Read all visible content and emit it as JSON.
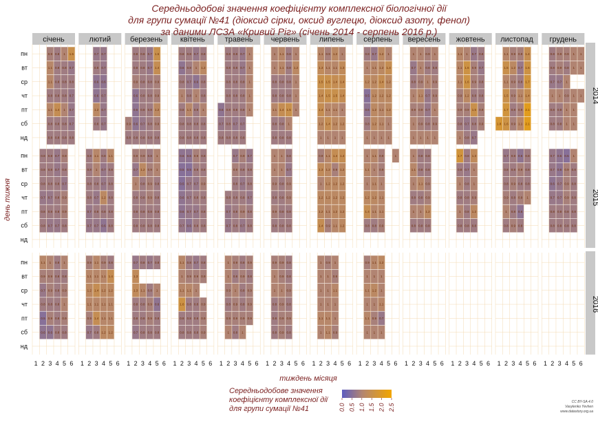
{
  "title": {
    "line1": "Середньодобові значення коефіцієнту комплексної біологічної дії",
    "line2": "для групи сумації №41 (діоксид сірки, оксид вуглецю, діоксид азоту, фенол)",
    "line3": "за даними ЛСЗА «Кривий Ріг» (січень 2014 - серпень 2016 р.)"
  },
  "chart_data": {
    "type": "heatmap",
    "months": [
      "січень",
      "лютий",
      "березень",
      "квітень",
      "травень",
      "червень",
      "липень",
      "серпень",
      "вересень",
      "жовтень",
      "листопад",
      "грудень"
    ],
    "years": [
      "2014",
      "2015",
      "2016"
    ],
    "days": [
      "пн",
      "вт",
      "ср",
      "чт",
      "пт",
      "сб",
      "нд"
    ],
    "week_ticks": [
      "1",
      "2",
      "3",
      "4",
      "5",
      "6"
    ],
    "xlabel": "тиждень місяця",
    "ylabel": "день тижня",
    "legend_title": [
      "Середньодобове значення",
      "коефіцієнту комплексної дії",
      "для групи сумації №41"
    ],
    "legend_ticks": [
      "0.0",
      "0.5",
      "1.0",
      "1.5",
      "2.0",
      "2.5"
    ],
    "legend_range": [
      0,
      2.5
    ],
    "colors": {
      "low": "#5d5cc0",
      "mid": "#b5866e",
      "high": "#f2a500",
      "missing": "#c0c0c0",
      "strip": "#c8c8c8"
    },
    "cells": [
      [
        [
          "e,e,0.9,0.8,1,1.5",
          "e,e,1.1,0.8,0.8,0.7",
          "e,e,1.1,0.8,0.8,0.8",
          "e,e,0.8,0.8,0.8,0.7",
          "e,e,1.1,1.4,1,0.7",
          "e,e,0.8,0.8,0.8,0.7",
          "e,e,0.8,0.8,0.8,0.8"
        ],
        [
          "e,e,0.7,0.7,e,e",
          "e,e,0.8,0.7,e,e",
          "e,e,0.6,0.6,e,e",
          "e,e,0.6,0.7,e,e",
          "e,e,1.2,0.7,e,e",
          "e,e,0.8,0.7,e,e",
          "e,e,e,e,e,e"
        ],
        [
          "e,0.8,0.8,0.7,1.5,e",
          "e,0.8,0.8,0.7,1.4,e",
          "e,0.9,0.8,0.8,0.9,e",
          "e,0.6,0.8,0.8,0.9,e",
          "e,0.6,0.8,0.8,1.2,e",
          "0.9,0.6,0.7,0.8,0.9,e",
          "0.8,0.8,0.8,0.8,0.8,e"
        ],
        [
          "e,0.8,0.8,0.7,0.8,e",
          "e,0.6,0.8,1,1.2,e",
          "e,0.8,0.7,0.6,0.8,e",
          "e,1,0.8,1,0.8,e",
          "e,0.8,1.1,0.8,1,e",
          "e,0.8,0.8,0.8,0.8,e",
          "e,0.8,0.8,0.8,0.8,e"
        ],
        [
          "e,0.8,0.8,0.7,1,e",
          "e,0.8,0.8,0.7,1,e",
          "e,0.8,0.8,0.8,1,e",
          "e,0.8,0.8,0.8,1,e",
          "0.6,0.8,0.8,0.8,1,e",
          "0.7,0.8,0.7,0.7,e,e",
          "0.8,0.8,0.8,0.8,e,e"
        ],
        [
          "e,1,1.1,0.8,1,e",
          "e,1,1.1,0.8,1.2,e",
          "e,0.8,0.8,0.8,1,e",
          "e,0.8,0.8,0.8,1,e",
          "e,1.1,1.4,1.5,1,e",
          "e,0.8,0.8,1,e,e",
          "e,0.8,0.8,0.8,e,e"
        ],
        [
          "e,1.1,0.9,1.2,1,e",
          "e,1.3,1.1,1.1,1.3,e",
          "e,1.5,1.5,1.4,1.4,e",
          "e,1.4,1.5,1.5,1.4,e",
          "e,1.4,1.1,1.1,1,e",
          "e,1.2,1.4,1.2,1.2,e",
          "e,1,1,1,1,e"
        ],
        [
          "e,0.8,0.7,1.2,1,e",
          "e,1,1.1,1.2,1.4,e",
          "e,1.2,1.2,1.4,1.2,e",
          "e,0.5,1.2,1.2,1.2,e",
          "e,0.6,1.2,1.1,1.2,e",
          "e,0.8,1.2,1.1,1,e",
          "e,1,1,1,1,e"
        ],
        [
          "e,1,1,0.9,1,e",
          "e,0.7,1,0.8,0.8,e",
          "e,0.8,0.9,1,0.9,e",
          "e,1,1.1,0.7,0.9,e",
          "e,0.9,0.9,0.7,1,e",
          "e,1,0.9,0.8,0.9,e",
          "e,1,1,1,1,e"
        ],
        [
          "e,1.1,1,0.7,0.8,e",
          "e,1.1,1.6,0.9,0.7,e",
          "e,1.1,1.6,0.9,0.8,e",
          "e,0.9,1.2,0.8,0.8,e",
          "e,0.9,0.9,1.5,0.9,e",
          "e,0.8,0.7,0.8,0.9,e",
          "e,1,0.8,0.7,e,e"
        ],
        [
          "e,1.1,0.9,0.9,1.4,e",
          "e,1.5,1.2,0.7,1.6,e",
          "e,1.1,0.9,0.8,1.7,e",
          "e,1.5,0.9,1.1,1.4,e",
          "e,1.7,0.8,0.9,2.1,e",
          "1.8,1.6,0.9,1.1,2.1,e",
          "e,e,e,e,e,e"
        ],
        [
          "e,0.8,0.9,0.9,1,1",
          "e,0.8,0.9,0.8,1,1",
          "e,0.7,0.7,1,e,e",
          "e,1,1,0.9,1,1",
          "e,0.8,0.8,1,1,e",
          "e,0.8,0.8,1,1,e",
          "e,e,e,e,e,e"
        ]
      ],
      [
        [
          "e,0.8,0.8,0.7,0.9,e",
          "e,0.8,0.8,0.7,0.8,e",
          "e,0.8,0.8,0.8,0.7,e",
          "e,0.7,0.7,0.8,0.9,e",
          "e,0.8,0.8,0.8,0.9,e",
          "e,0.8,0.7,0.7,0.8,e",
          "e,e,e,e,e,e"
        ],
        [
          "e,0.8,1.1,0.8,1.1,e",
          "e,0.8,1,0.7,0.8,e",
          "e,0.8,0.8,0.7,0.8,e",
          "e,0.8,0.7,1.2,0.8,e",
          "e,0.7,0.8,0.8,0.8,e",
          "e,0.7,0.7,0.6,0.8,e",
          "e,e,e,e,e,e"
        ],
        [
          "e,0.9,0.9,0.8,1,e",
          "e,0.7,1.2,0.9,1,e",
          "e,1,0.8,0.9,0.8,e",
          "e,0.8,0.8,0.9,0.8,e",
          "e,0.8,0.8,0.8,0.8,e",
          "e,0.8,0.8,0.8,0.8,e",
          "e,e,e,e,e,e"
        ],
        [
          "e,0.6,0.6,0.9,0.8,e",
          "e,0.5,0.5,0.8,0.8,e",
          "e,0.5,0.7,0.7,0.9,e",
          "e,0.6,0.7,0.8,0.8,e",
          "e,0.6,0.7,0.7,0.8,e",
          "e,0.7,0.6,0.8,0.8,e",
          "e,e,e,e,e,e"
        ],
        [
          "e,e,0.7,0.9,0.7,e",
          "e,e,0.9,0.8,0.8,e",
          "e,e,0.8,0.7,0.8,e",
          "e,0.8,0.8,0.8,0.7,e",
          "e,0.7,0.8,0.9,0.8,e",
          "e,0.7,0.8,0.7,0.8,e",
          "e,e,e,e,e,e"
        ],
        [
          "e,1,1,0.8,e,e",
          "e,1,1,0.7,e,e",
          "e,0.9,0.8,0.9,e,e",
          "e,0.8,0.8,0.9,e,e",
          "e,0.9,0.8,0.8,e,e",
          "e,0.8,0.8,0.8,e,e",
          "e,e,e,e,e,e"
        ],
        [
          "e,0.9,1.1,1.4,1.4,e",
          "e,1.3,1.2,0.9,1.2,e",
          "e,1,1.2,1.2,1.2,e",
          "e,1.2,1.2,1.2,1.2,e",
          "e,1.2,1.1,1.2,1.2,e",
          "e,1.4,0.9,1.1,1.2,e",
          "e,e,e,e,e,e"
        ],
        [
          "e,1,1.1,0.9,e,1",
          "e,1.1,1,0.9,e,e",
          "e,1,1.1,1,e,e",
          "e,1.2,1.2,1.1,e,e",
          "e,1.4,1.1,1.1,e,e",
          "e,0.8,0.8,0.9,e,e",
          "e,e,e,e,e,e"
        ],
        [
          "e,1,0.8,0.8,e,e",
          "e,1.1,0.8,0.8,e,e",
          "e,1,1.1,0.9,e,e",
          "e,0.8,0.8,0.9,e,e",
          "e,1,1,1.2,e,e",
          "e,0.8,0.8,0.8,e,e",
          "e,e,e,e,e,e"
        ],
        [
          "e,1.7,0.8,1.3,e,e",
          "e,0.8,0.7,1,e,e",
          "e,1,0.8,1,e,e",
          "e,0.8,0.8,0.9,e,e",
          "e,1,0.8,1.2,e,e",
          "e,0.8,0.8,0.8,e,e",
          "e,e,e,e,e,e"
        ],
        [
          "e,0.7,0.8,0.6,0.8,e",
          "e,0.8,0.8,0.9,0.8,e",
          "e,0.8,0.9,0.8,0.8,e",
          "e,0.9,0.8,0.9,1,e",
          "e,1,0.8,0.6,e,e",
          "e,0.8,0.9,0.8,e,e",
          "e,e,e,e,e,e"
        ],
        [
          "e,0.7,0.6,0.5,1,e",
          "e,0.7,0.6,0.9,0.8,e",
          "e,0.6,0.7,0.9,0.8,e",
          "e,0.7,0.7,0.9,0.8,e",
          "e,0.8,0.8,0.8,0.8,e",
          "e,0.8,0.8,0.8,0.8,e",
          "e,e,e,e,e,e"
        ]
      ],
      [
        [
          "e,1.1,1,0.8,1,e",
          "e,0.9,0.9,0.8,0.8,e",
          "e,0.7,0.9,0.8,0.9,e",
          "e,0.8,0.8,0.8,1,e",
          "e,0.5,0.9,0.8,0.9,e",
          "e,0.6,0.6,0.8,0.8,e",
          "e,e,e,e,e,e"
        ],
        [
          "e,0.9,1.1,0.9,0.8,e",
          "e,1.1,1.1,1.1,1.4,e",
          "e,1.2,1.4,1.2,1.2,e",
          "e,1.1,1.1,1.1,1.1,e",
          "e,0.9,1.4,1.1,1.1,e",
          "e,0.7,0.8,1.2,1.2,e",
          "e,e,e,e,e,e"
        ],
        [
          "e,0.7,0.8,0.7,0.8,e",
          "e,1.3,e,e,e,e",
          "e,1.3,1.1,0.8,1,e",
          "e,0.8,0.8,0.9,0.6,e",
          "e,0.8,0.8,0.9,0.8,e",
          "e,0.7,0.8,0.8,0.8,e",
          "e,e,e,e,e,e"
        ],
        [
          "e,1.1,0.8,0.7,0.8,e",
          "e,1,0.9,0.9,0.9,e",
          "e,1.1,1.1,1,e,e",
          "e,1.6,0.8,0.8,0.9,e",
          "e,0.8,0.8,0.8,0.9,e",
          "e,0.8,0.8,0.8,0.9,e",
          "e,e,e,e,e,e"
        ],
        [
          "e,1,0.9,0.8,0.9,e",
          "e,1,0.8,0.9,0.8,e",
          "e,0.9,1,0.8,0.9,e",
          "e,0.8,0.9,0.8,0.9,e",
          "e,0.9,0.9,0.9,0.9,e",
          "e,1,0.8,1,e,e",
          "e,e,e,e,e,e"
        ],
        [
          "e,0.9,0.9,0.8,e,e",
          "e,1,0.9,0.8,e,e",
          "e,1,1,0.9,e,e",
          "e,0.8,0.9,0.8,e,e",
          "e,0.8,0.9,0.9,e,e",
          "e,0.8,0.9,0.8,e,e",
          "e,e,e,e,e,e"
        ],
        [
          "e,1,0.9,1,e,e",
          "e,1,1,0.9,e,e",
          "e,1,1,1.1,e,e",
          "e,1,1,1,e,e",
          "e,1.1,1.1,1,e,e",
          "e,1,1.1,0.9,e,e",
          "e,e,e,e,e,e"
        ],
        [
          "e,0.9,1.1,1.2,e,e",
          "e,1,1,1,e,e",
          "e,1.1,1.2,1,e,e",
          "e,1,1,1.1,e,e",
          "e,1.1,0.9,0.7,e,e",
          "e,1,1,1,e,e",
          "e,e,e,e,e,e"
        ],
        [
          "e,e,e,e,e,e",
          "e,e,e,e,e,e",
          "e,e,e,e,e,e",
          "e,e,e,e,e,e",
          "e,e,e,e,e,e",
          "e,e,e,e,e,e",
          "e,e,e,e,e,e"
        ],
        [
          "e,e,e,e,e,e",
          "e,e,e,e,e,e",
          "e,e,e,e,e,e",
          "e,e,e,e,e,e",
          "e,e,e,e,e,e",
          "e,e,e,e,e,e",
          "e,e,e,e,e,e"
        ],
        [
          "e,e,e,e,e,e",
          "e,e,e,e,e,e",
          "e,e,e,e,e,e",
          "e,e,e,e,e,e",
          "e,e,e,e,e,e",
          "e,e,e,e,e,e",
          "e,e,e,e,e,e"
        ],
        [
          "e,e,e,e,e,e",
          "e,e,e,e,e,e",
          "e,e,e,e,e,e",
          "e,e,e,e,e,e",
          "e,e,e,e,e,e",
          "e,e,e,e,e,e",
          "e,e,e,e,e,e"
        ]
      ]
    ]
  },
  "credit": {
    "line1": "CC BY-SA 4.0",
    "line2": "Vasylenko Yevhen",
    "line3": "www.datastory.org.ua"
  }
}
